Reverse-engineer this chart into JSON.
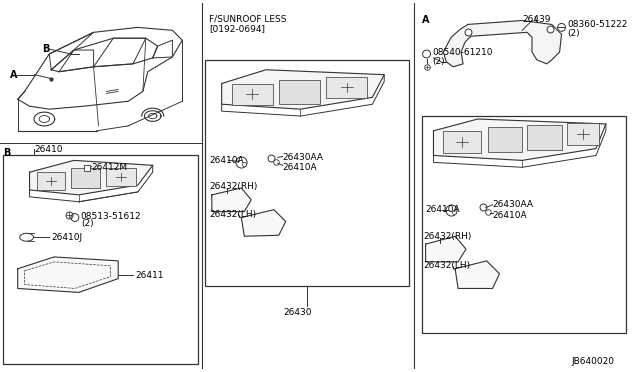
{
  "bg_color": "#ffffff",
  "line_color": "#333333",
  "text_color": "#000000",
  "fig_width": 6.4,
  "fig_height": 3.72,
  "dpi": 100,
  "diagram_code": "JB640020",
  "fsunroof_label": "F/SUNROOF LESS",
  "fsunroof_date": "[0192-0694]",
  "parts": {
    "B_label": "B",
    "A_label": "A",
    "p26410": "26410",
    "p26412M": "26412M",
    "p08513": "08513-51612",
    "p08513_2": "(2)",
    "p26410J": "26410J",
    "p26411": "26411",
    "p26410A": "26410A",
    "p26430AA": "26430AA",
    "p26432RH": "26432(RH)",
    "p26432LH": "26432(LH)",
    "p26430": "26430",
    "p26439": "26439",
    "p08540": "08540-61210",
    "p08540_2": "(2)",
    "p08360": "08360-51222",
    "p08360_2": "(2)"
  }
}
